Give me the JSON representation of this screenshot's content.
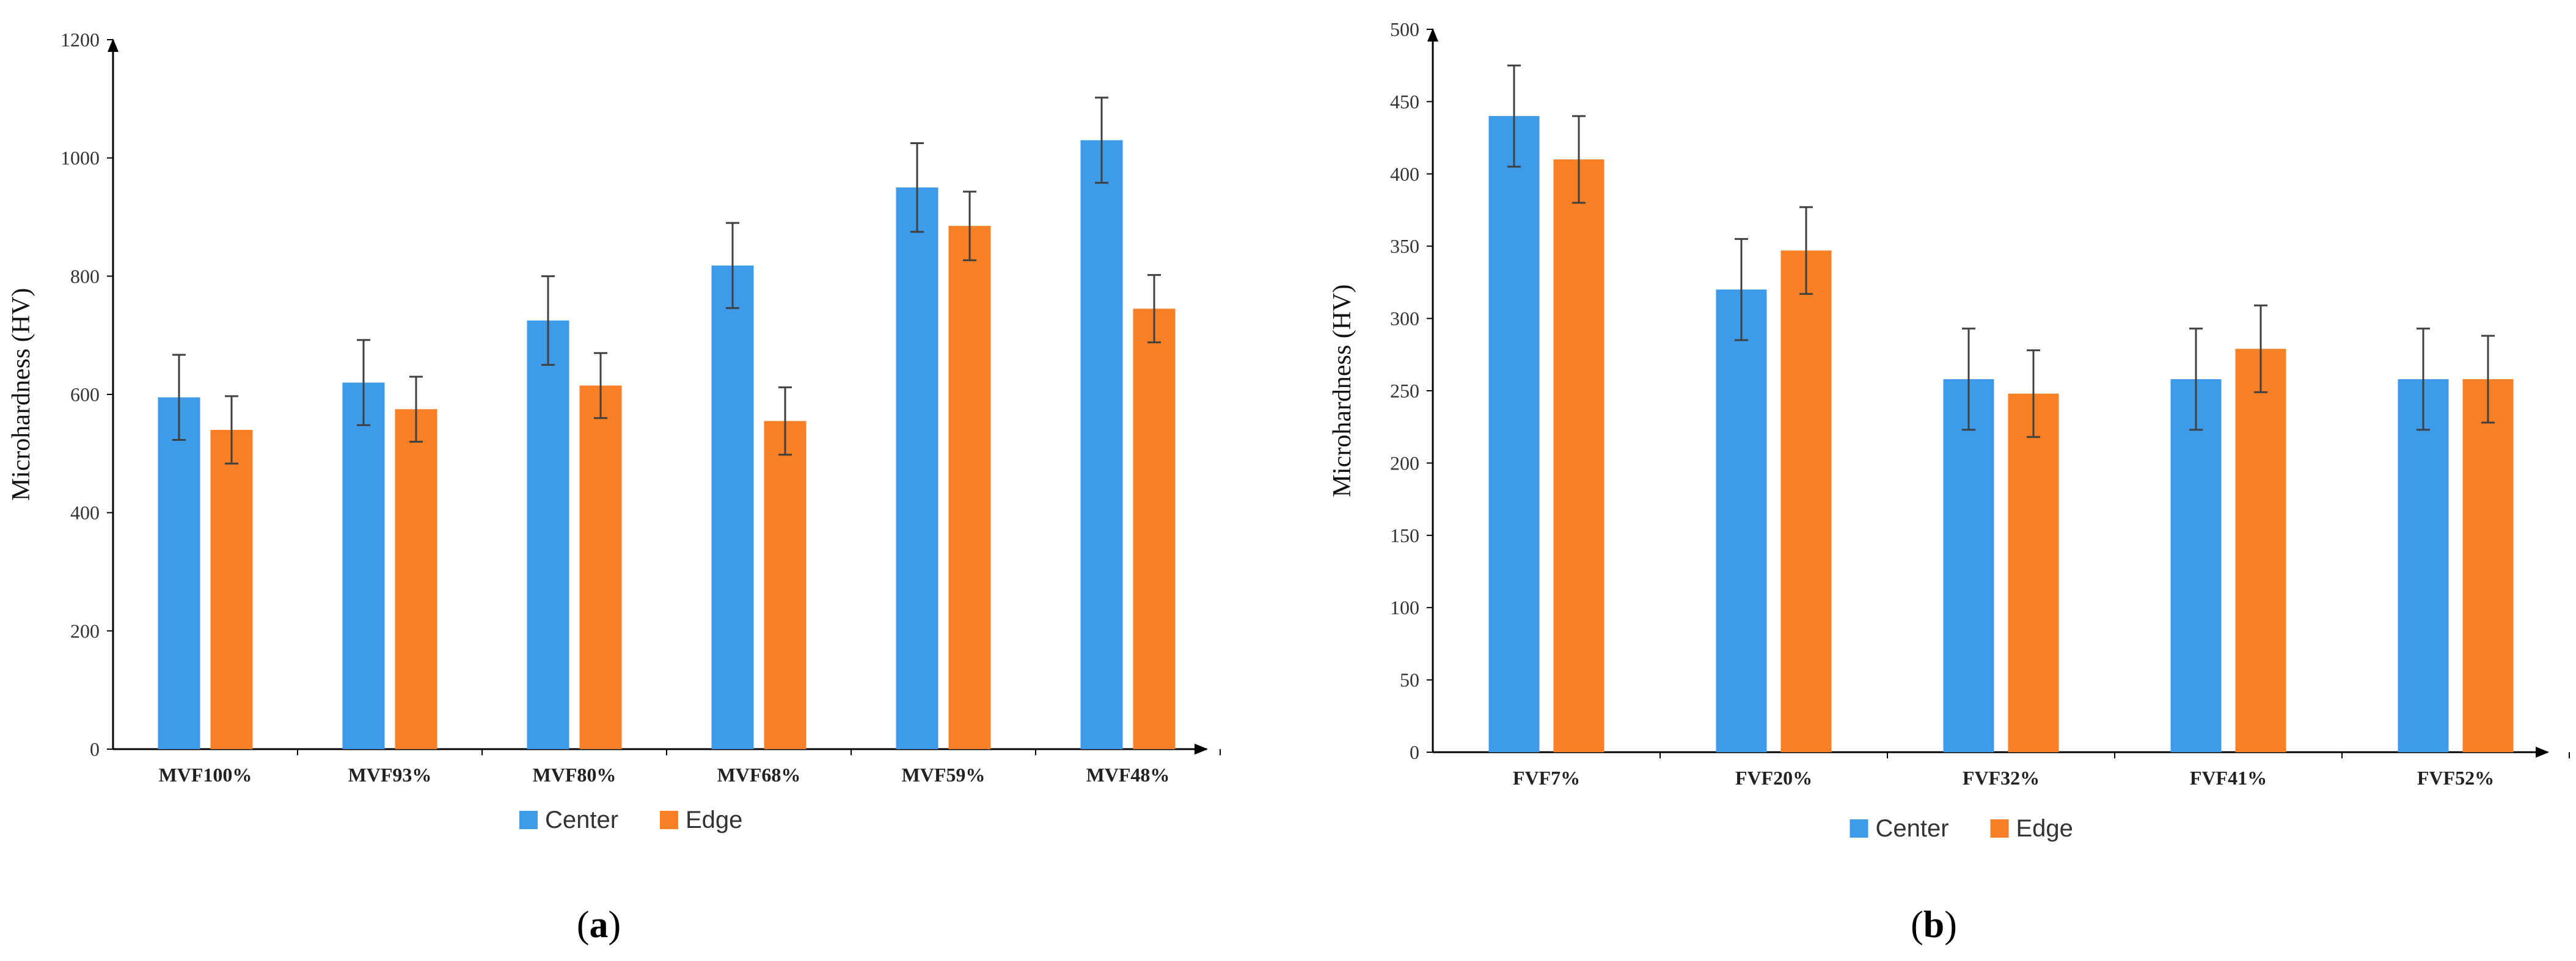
{
  "chart_data": [
    {
      "type": "bar",
      "panel": "a",
      "panel_label": {
        "open": "(",
        "letter": "a",
        "close": ")"
      },
      "title": "",
      "xlabel": "",
      "ylabel": "Microhardness (HV)",
      "ylim": [
        0,
        1200
      ],
      "yticks": [
        0,
        200,
        400,
        600,
        800,
        1000,
        1200
      ],
      "categories": [
        "MVF100%",
        "MVF93%",
        "MVF80%",
        "MVF68%",
        "MVF59%",
        "MVF48%"
      ],
      "series": [
        {
          "name": "Center",
          "color": "#3d9be9",
          "values": [
            595,
            620,
            725,
            818,
            950,
            1030
          ],
          "errors": [
            72,
            72,
            75,
            72,
            75,
            72
          ]
        },
        {
          "name": "Edge",
          "color": "#f77f26",
          "values": [
            540,
            575,
            615,
            555,
            885,
            745
          ],
          "errors": [
            57,
            55,
            55,
            57,
            58,
            57
          ]
        }
      ],
      "legend_position": "bottom-center",
      "grid": false
    },
    {
      "type": "bar",
      "panel": "b",
      "panel_label": {
        "open": "(",
        "letter": "b",
        "close": ")"
      },
      "title": "",
      "xlabel": "",
      "ylabel": "Microhardness (HV)",
      "ylim": [
        0,
        500
      ],
      "yticks": [
        0,
        50,
        100,
        150,
        200,
        250,
        300,
        350,
        400,
        450,
        500
      ],
      "categories": [
        "FVF7%",
        "FVF20%",
        "FVF32%",
        "FVF41%",
        "FVF52%"
      ],
      "series": [
        {
          "name": "Center",
          "color": "#3d9be9",
          "values": [
            440,
            320,
            258,
            258,
            258
          ],
          "errors": [
            35,
            35,
            35,
            35,
            35
          ]
        },
        {
          "name": "Edge",
          "color": "#f77f26",
          "values": [
            410,
            347,
            248,
            279,
            258
          ],
          "errors": [
            30,
            30,
            30,
            30,
            30
          ]
        }
      ],
      "legend_position": "bottom-center",
      "grid": false
    }
  ]
}
